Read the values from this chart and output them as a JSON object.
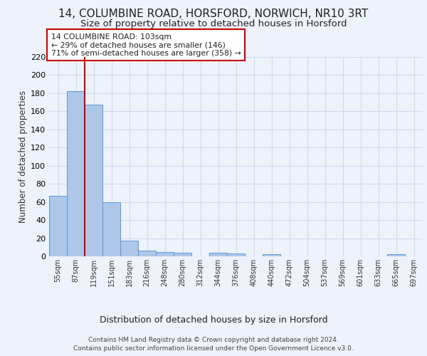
{
  "title1": "14, COLUMBINE ROAD, HORSFORD, NORWICH, NR10 3RT",
  "title2": "Size of property relative to detached houses in Horsford",
  "xlabel": "Distribution of detached houses by size in Horsford",
  "ylabel": "Number of detached properties",
  "bar_values": [
    67,
    182,
    167,
    60,
    17,
    6,
    5,
    4,
    0,
    4,
    3,
    0,
    2,
    0,
    0,
    0,
    0,
    0,
    0,
    2,
    0
  ],
  "bin_labels": [
    "55sqm",
    "87sqm",
    "119sqm",
    "151sqm",
    "183sqm",
    "216sqm",
    "248sqm",
    "280sqm",
    "312sqm",
    "344sqm",
    "376sqm",
    "408sqm",
    "440sqm",
    "472sqm",
    "504sqm",
    "537sqm",
    "569sqm",
    "601sqm",
    "633sqm",
    "665sqm",
    "697sqm"
  ],
  "bar_color": "#aec6e8",
  "bar_edge_color": "#5b9bd5",
  "background_color": "#eef2fb",
  "grid_color": "#d0d8f0",
  "red_line_x": 1.5,
  "red_line_color": "#cc0000",
  "annotation_text": "14 COLUMBINE ROAD: 103sqm\n← 29% of detached houses are smaller (146)\n71% of semi-detached houses are larger (358) →",
  "annotation_box_color": "#ffffff",
  "annotation_box_edge": "#cc0000",
  "footer1": "Contains HM Land Registry data © Crown copyright and database right 2024.",
  "footer2": "Contains public sector information licensed under the Open Government Licence v3.0.",
  "ylim": [
    0,
    220
  ],
  "yticks": [
    0,
    20,
    40,
    60,
    80,
    100,
    120,
    140,
    160,
    180,
    200,
    220
  ],
  "title1_fontsize": 11,
  "title2_fontsize": 9.5,
  "xlabel_fontsize": 9,
  "ylabel_fontsize": 8.5
}
